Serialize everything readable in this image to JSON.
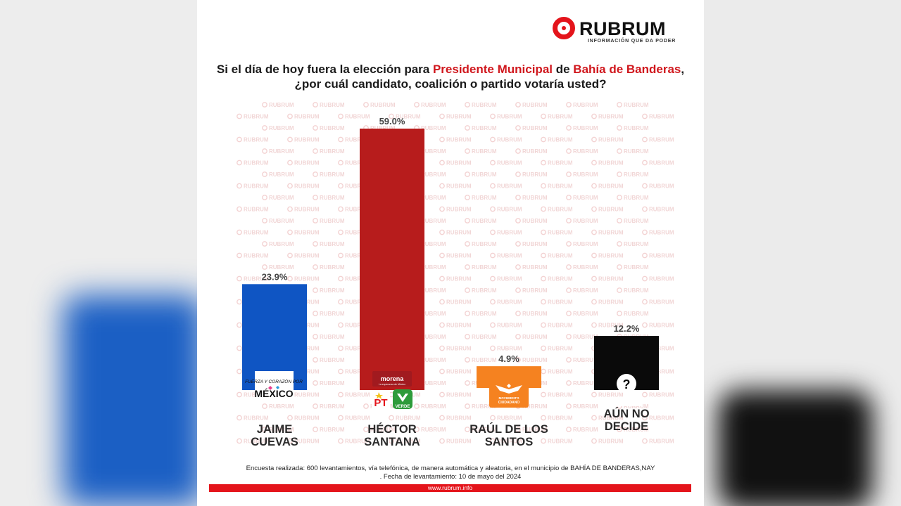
{
  "brand": {
    "name": "RUBRUM",
    "tagline": "INFORMACIÓN QUE DA PODER",
    "watermark": "RUBRUM",
    "website": "www.rubrum.info"
  },
  "question": {
    "part1": "Si el día de hoy fuera la elección para ",
    "highlight1": "Presidente Municipal",
    "part2": " de ",
    "highlight2": "Bahía de Banderas",
    "part3": ", ¿por cuál candidato, coalición o partido votaría usted?"
  },
  "footer": {
    "line1": "Encuesta realizada: 600 levantamientos, vía telefónica, de manera automática y aleatoria, en el municipio de BAHÍA DE BANDERAS,NAY",
    "line2": ". Fecha de levantamiento: 10 de mayo del 2024"
  },
  "logos": {
    "fuerza": [
      "FUERZA",
      "Y",
      "CORAZÓN",
      "POR",
      "MÉXICO"
    ],
    "morena": "morena",
    "morena_sub": "La esperanza de México",
    "pt": "PT",
    "verde": "VERDE",
    "mc": "MOVIMIENTO CIUDADANO"
  },
  "colors": {
    "accent": "#e4141b",
    "text": "#1a1a1a"
  },
  "chart_data": {
    "type": "bar",
    "categories": [
      "JAIME CUEVAS",
      "HÉCTOR SANTANA",
      "RAÚL DE LOS SANTOS",
      "AÚN NO DECIDE"
    ],
    "category_lines": [
      [
        "JAIME",
        "CUEVAS"
      ],
      [
        "HÉCTOR",
        "SANTANA"
      ],
      [
        "RAÚL DE LOS",
        "SANTOS"
      ],
      [
        "AÚN NO",
        "DECIDE"
      ]
    ],
    "values": [
      23.9,
      59.0,
      4.9,
      12.2
    ],
    "value_labels": [
      "23.9%",
      "59.0%",
      "4.9%",
      "12.2%"
    ],
    "colors": [
      "#0f55c3",
      "#b71c1c",
      "#f58220",
      "#0a0a0a"
    ],
    "ylim": [
      0,
      60
    ],
    "grid": false,
    "legend": "none"
  }
}
